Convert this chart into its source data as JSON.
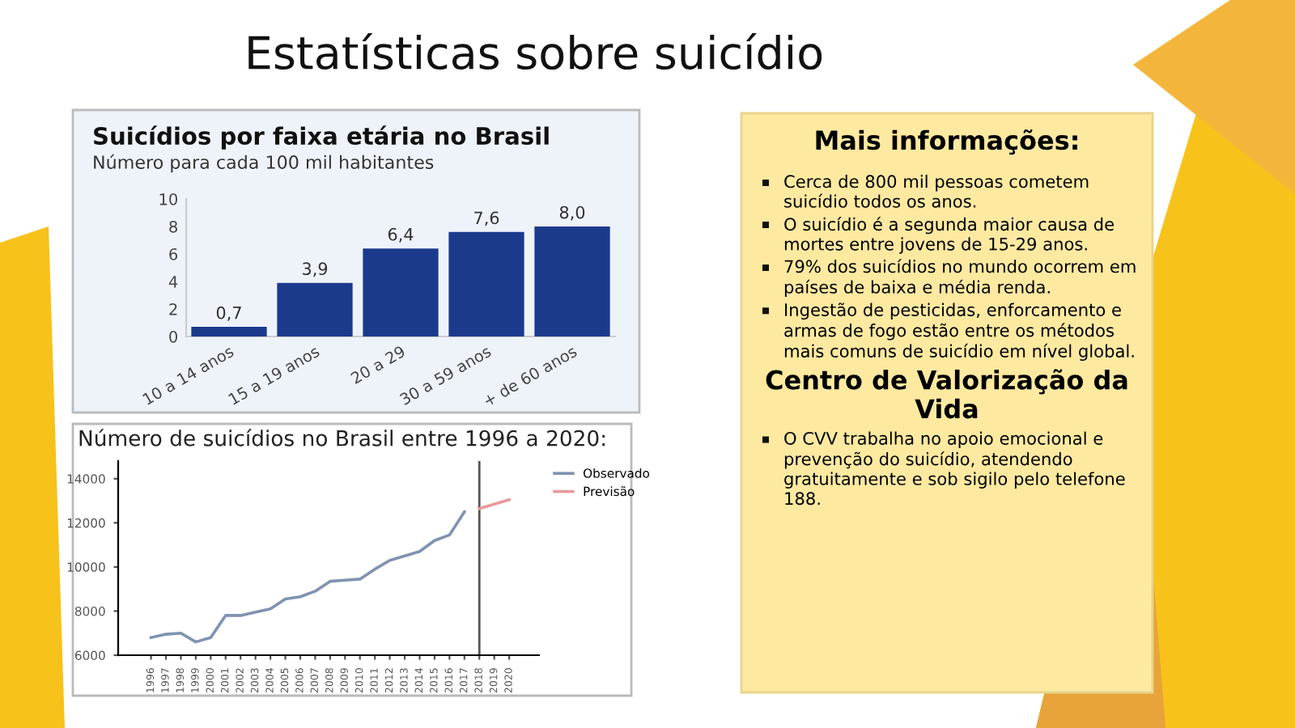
{
  "chart_data": [
    {
      "type": "other",
      "title": "Estatísticas sobre suicídio"
    },
    {
      "type": "bar",
      "title": "Suicídios por faixa etária no Brasil",
      "subtitle": "Número para cada 100 mil habitantes",
      "categories": [
        "10 a 14 anos",
        "15 a 19 anos",
        "20 a 29",
        "30 a 59 anos",
        "+ de 60 anos"
      ],
      "values": [
        0.7,
        3.9,
        6.4,
        7.6,
        8.0
      ],
      "value_labels": [
        "0,7",
        "3,9",
        "6,4",
        "7,6",
        "8,0"
      ],
      "color": "#1c3a8c",
      "ylim": [
        0,
        10
      ],
      "yticks": [
        0,
        2,
        4,
        6,
        8,
        10
      ],
      "grid": false,
      "legend": false
    },
    {
      "type": "line",
      "title": "Número de suicídios no Brasil entre 1996 a 2020:",
      "series": [
        {
          "name": "Observado",
          "color": "#7f93b0",
          "x": [
            1996,
            1997,
            1998,
            1999,
            2000,
            2001,
            2002,
            2003,
            2004,
            2005,
            2006,
            2007,
            2008,
            2009,
            2010,
            2011,
            2012,
            2013,
            2014,
            2015,
            2016,
            2017
          ],
          "values": [
            6800,
            6950,
            7000,
            6600,
            6800,
            7800,
            7800,
            7950,
            8100,
            8550,
            8650,
            8900,
            9350,
            9400,
            9450,
            9900,
            10300,
            10500,
            10700,
            11200,
            11450,
            12500
          ]
        },
        {
          "name": "Previsão",
          "color": "#e89a9a",
          "x": [
            2018,
            2019,
            2020
          ],
          "values": [
            12650,
            12850,
            13050
          ]
        }
      ],
      "xlim": [
        1993.8,
        2022
      ],
      "xticks": [
        1996,
        1997,
        1998,
        1999,
        2000,
        2001,
        2002,
        2003,
        2004,
        2005,
        2006,
        2007,
        2008,
        2009,
        2010,
        2011,
        2012,
        2013,
        2014,
        2015,
        2016,
        2017,
        2018,
        2019,
        2020
      ],
      "ylim": [
        6000,
        14800
      ],
      "yticks": [
        6000,
        8000,
        10000,
        12000,
        14000
      ],
      "ref_lines": [
        {
          "axis": "x",
          "value": 2018,
          "color": "#555555"
        }
      ],
      "grid": false,
      "legend": "right"
    },
    {
      "type": "other",
      "title": "Mais informações:",
      "subtitle": "Centro de Valorização da Vida",
      "annotations": [
        "Cerca de 800 mil pessoas cometem suicídio todos os anos.",
        "O suicídio é a segunda maior causa de mortes entre jovens de 15-29 anos.",
        "79% dos suicídios no mundo ocorrem em países de baixa e média renda.",
        "Ingestão de pesticidas, enforcamento e armas de fogo estão entre os métodos mais comuns de suicídio em nível global.",
        "O CVV trabalha no apoio emocional e prevenção do suicídio, atendendo gratuitamente e sob sigilo pelo telefone 188."
      ]
    }
  ]
}
